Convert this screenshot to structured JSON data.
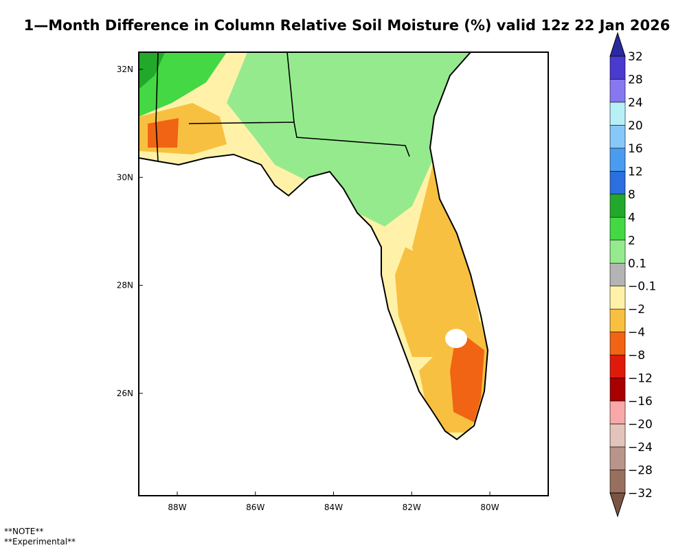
{
  "title": "1—Month Difference in Column Relative Soil Moisture (%) valid 12z 22 Jan 2026",
  "lat_labels": [
    "32N",
    "30N",
    "28N",
    "26N"
  ],
  "lon_labels": [
    "88W",
    "86W",
    "84W",
    "82W",
    "80W"
  ],
  "colorbar": {
    "labels": [
      "32",
      "28",
      "24",
      "20",
      "16",
      "12",
      "8",
      "4",
      "2",
      "0.1",
      "−0.1",
      "−2",
      "−4",
      "−8",
      "−12",
      "−16",
      "−20",
      "−24",
      "−28",
      "−32"
    ],
    "colors": [
      "#2a2aa0",
      "#4a3ad0",
      "#8878f0",
      "#b8f0f8",
      "#88c8f8",
      "#4a9cf0",
      "#2a6ee0",
      "#22a82a",
      "#44d844",
      "#96ea8e",
      "#b4b4b4",
      "#fff2a8",
      "#f8c040",
      "#f06414",
      "#e01a0a",
      "#a80000",
      "#f8a8a8",
      "#e2c4ba",
      "#b8948a",
      "#98705e",
      "#7a5444"
    ]
  },
  "notes": [
    "**NOTE**",
    "**Experimental**"
  ]
}
